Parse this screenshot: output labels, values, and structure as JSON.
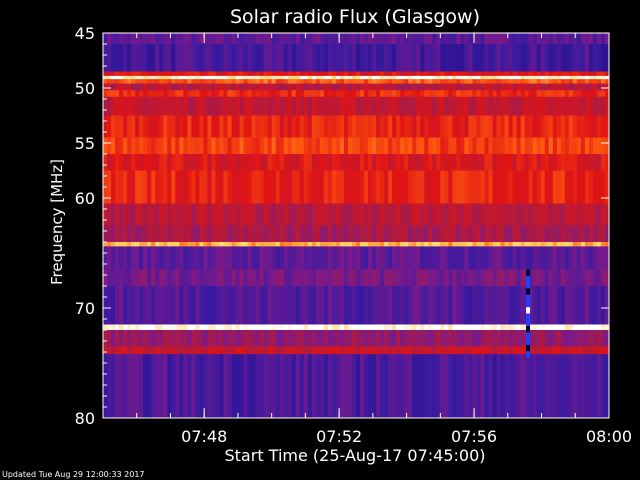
{
  "chart_data": {
    "type": "heatmap",
    "title": "Solar radio Flux (Glasgow)",
    "xlabel": "Start Time (25-Aug-17 07:45:00)",
    "ylabel": "Frequency [MHz]",
    "xlim_minutes_after_0745": [
      0,
      15
    ],
    "ylim": [
      45,
      80
    ],
    "y_ticks": [
      "45",
      "50",
      "55",
      "60",
      "70",
      "80"
    ],
    "x_ticks": [
      "07:48",
      "07:52",
      "07:56",
      "08:00"
    ],
    "colormap": [
      "#1a0a7a",
      "#3a1aa0",
      "#7a1a8a",
      "#b01a40",
      "#e01414",
      "#ff5a10",
      "#ffd060",
      "#ffffff"
    ],
    "frequency_bands": [
      {
        "from": 45.0,
        "to": 46.0,
        "level": 0.22
      },
      {
        "from": 46.0,
        "to": 48.5,
        "level": 0.16
      },
      {
        "from": 48.5,
        "to": 48.9,
        "level": 0.55
      },
      {
        "from": 48.9,
        "to": 49.2,
        "level": 0.95
      },
      {
        "from": 49.2,
        "to": 49.6,
        "level": 0.7
      },
      {
        "from": 49.6,
        "to": 50.2,
        "level": 0.45
      },
      {
        "from": 50.2,
        "to": 50.8,
        "level": 0.62
      },
      {
        "from": 50.8,
        "to": 52.5,
        "level": 0.48
      },
      {
        "from": 52.5,
        "to": 54.5,
        "level": 0.6
      },
      {
        "from": 54.5,
        "to": 56.0,
        "level": 0.66
      },
      {
        "from": 56.0,
        "to": 57.5,
        "level": 0.55
      },
      {
        "from": 57.5,
        "to": 60.5,
        "level": 0.6
      },
      {
        "from": 60.5,
        "to": 62.5,
        "level": 0.45
      },
      {
        "from": 62.5,
        "to": 64.0,
        "level": 0.4
      },
      {
        "from": 64.0,
        "to": 64.4,
        "level": 0.82
      },
      {
        "from": 64.4,
        "to": 66.5,
        "level": 0.22
      },
      {
        "from": 66.5,
        "to": 68.0,
        "level": 0.28
      },
      {
        "from": 68.0,
        "to": 71.5,
        "level": 0.2
      },
      {
        "from": 71.5,
        "to": 72.0,
        "level": 0.98
      },
      {
        "from": 72.0,
        "to": 73.5,
        "level": 0.35
      },
      {
        "from": 73.5,
        "to": 74.2,
        "level": 0.5
      },
      {
        "from": 74.2,
        "to": 80.0,
        "level": 0.18
      }
    ],
    "burst": {
      "time_minute": 12.6,
      "freq_from": 66.5,
      "freq_to": 74.5
    }
  },
  "footer": "Updated Tue Aug 29 12:00:33 2017"
}
